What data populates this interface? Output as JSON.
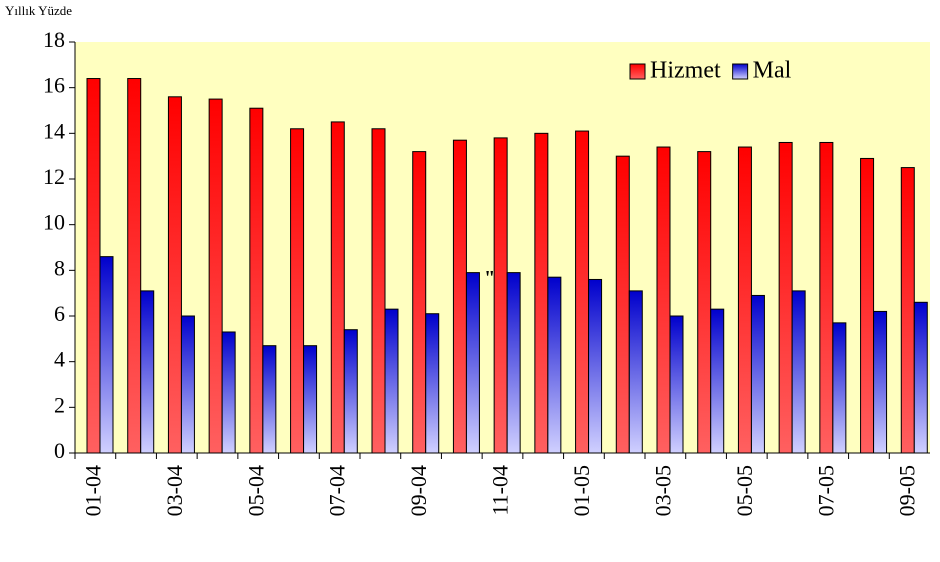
{
  "chart_data": {
    "type": "bar",
    "ylabel": "Yıllık Yüzde",
    "categories": [
      "01-04",
      null,
      "03-04",
      null,
      "05-04",
      null,
      "07-04",
      null,
      "09-04",
      null,
      "11-04",
      null,
      "01-05",
      null,
      "03-05",
      null,
      "05-05",
      null,
      "07-05",
      null,
      "09-05"
    ],
    "series": [
      {
        "name": "Hizmet",
        "color": "#ff0000",
        "values": [
          16.4,
          16.4,
          15.6,
          15.5,
          15.1,
          14.2,
          14.5,
          14.2,
          13.2,
          13.7,
          13.8,
          14.0,
          14.1,
          13.0,
          13.4,
          13.2,
          13.4,
          13.6,
          13.6,
          12.9,
          12.5
        ]
      },
      {
        "name": "Mal",
        "color": "#0000cc",
        "values": [
          8.6,
          7.1,
          6.0,
          5.3,
          4.7,
          4.7,
          5.4,
          6.3,
          6.1,
          7.9,
          7.9,
          7.7,
          7.6,
          7.1,
          6.0,
          6.3,
          6.9,
          7.1,
          5.7,
          6.2,
          6.6
        ]
      }
    ],
    "annotation": "\"",
    "ylim": [
      0,
      18
    ],
    "yticks": [
      0,
      2,
      4,
      6,
      8,
      10,
      12,
      14,
      16,
      18
    ],
    "legend": "top-right",
    "plot_background": "#ffffc0"
  }
}
